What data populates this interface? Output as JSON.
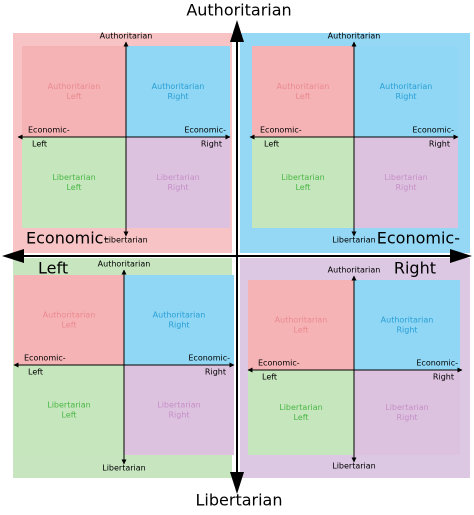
{
  "main_axes": {
    "top": "Authoritarian",
    "bottom": "Libertarian",
    "left": {
      "line1": "Economic-",
      "line2": "Left"
    },
    "right": {
      "line1": "Economic-",
      "line2": "Right"
    }
  },
  "quadrants": [
    {
      "top": "Authoritarian",
      "bottom": "Libertarian",
      "left": {
        "line1": "Economic-",
        "line2": "Left"
      },
      "right": {
        "line1": "Economic-",
        "line2": "Right"
      },
      "cells": [
        [
          "Authoritarian",
          "Left"
        ],
        [
          "Authoritarian",
          "Right"
        ],
        [
          "Libertarian",
          "Left"
        ],
        [
          "Libertarian",
          "Right"
        ]
      ]
    },
    {
      "top": "Authoritarian",
      "bottom": "Libertarian",
      "left": {
        "line1": "Economic-",
        "line2": "Left"
      },
      "right": {
        "line1": "Economic-",
        "line2": "Right"
      },
      "cells": [
        [
          "Authoritarian",
          "Left"
        ],
        [
          "Authoritarian",
          "Right"
        ],
        [
          "Libertarian",
          "Left"
        ],
        [
          "Libertarian",
          "Right"
        ]
      ]
    },
    {
      "top": "Authoritarian",
      "bottom": "Libertarian",
      "left": {
        "line1": "Economic-",
        "line2": "Left"
      },
      "right": {
        "line1": "Economic-",
        "line2": "Right"
      },
      "cells": [
        [
          "Authoritarian",
          "Left"
        ],
        [
          "Authoritarian",
          "Right"
        ],
        [
          "Libertarian",
          "Left"
        ],
        [
          "Libertarian",
          "Right"
        ]
      ]
    },
    {
      "top": "Authoritarian",
      "bottom": "Libertarian",
      "left": {
        "line1": "Economic-",
        "line2": "Left"
      },
      "right": {
        "line1": "Economic-",
        "line2": "Right"
      },
      "cells": [
        [
          "Authoritarian",
          "Left"
        ],
        [
          "Authoritarian",
          "Right"
        ],
        [
          "Libertarian",
          "Left"
        ],
        [
          "Libertarian",
          "Right"
        ]
      ]
    }
  ]
}
